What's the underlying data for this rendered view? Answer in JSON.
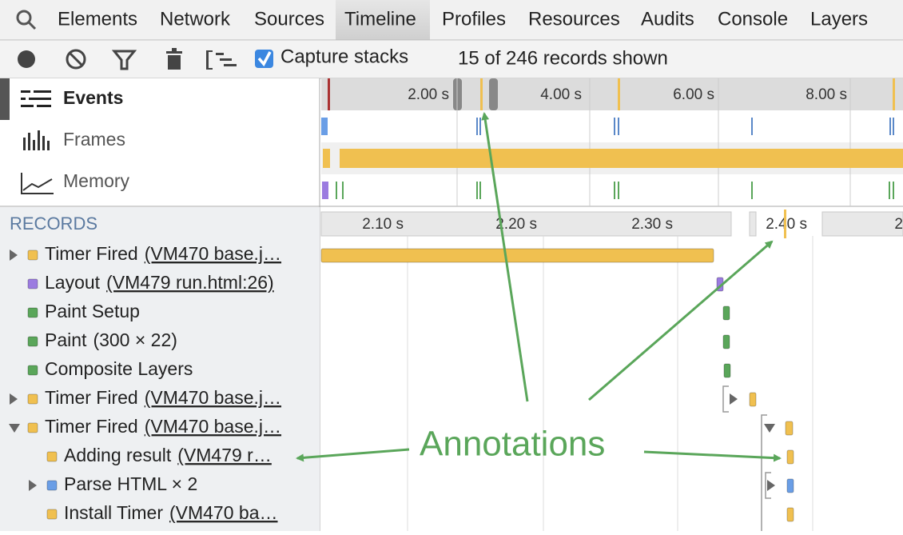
{
  "tabs": [
    "Elements",
    "Network",
    "Sources",
    "Timeline",
    "Profiles",
    "Resources",
    "Audits",
    "Console",
    "Layers"
  ],
  "toolbar": {
    "capture_stacks": "Capture stacks",
    "records_status": "15 of 246 records shown"
  },
  "overview": {
    "modes": [
      "Events",
      "Frames",
      "Memory"
    ],
    "ruler": [
      "2.00 s",
      "4.00 s",
      "6.00 s",
      "8.00 s"
    ]
  },
  "records": {
    "header": "RECORDS",
    "ruler": [
      "2.10 s",
      "2.20 s",
      "2.30 s",
      "2.40 s",
      "2"
    ],
    "rows": [
      {
        "title": "Timer Fired",
        "detail": "(VM470 base.j…"
      },
      {
        "title": "Layout",
        "detail": "(VM479 run.html:26)"
      },
      {
        "title": "Paint Setup"
      },
      {
        "title": "Paint",
        "detail": "(300 × 22)"
      },
      {
        "title": "Composite Layers"
      },
      {
        "title": "Timer Fired",
        "detail": "(VM470 base.j…"
      },
      {
        "title": "Timer Fired",
        "detail": "(VM470 base.j…"
      },
      {
        "title": "Adding result",
        "detail": "(VM479 r…"
      },
      {
        "title": "Parse HTML × 2"
      },
      {
        "title": "Install Timer",
        "detail": "(VM470 ba…"
      }
    ]
  },
  "annotation": "Annotations"
}
